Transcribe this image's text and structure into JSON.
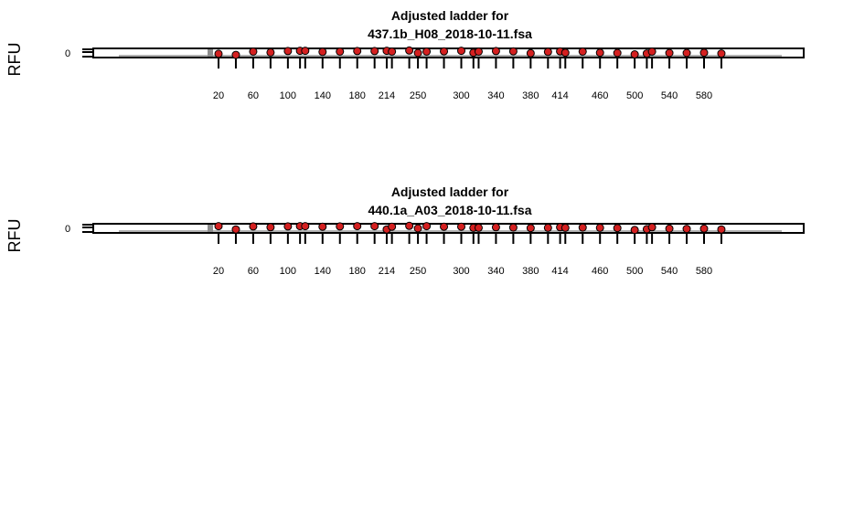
{
  "chart_data": [
    {
      "type": "scatter",
      "title_line1": "Adjusted ladder for",
      "title_line2": "437.1b_H08_2018-10-11.fsa",
      "ylabel": "RFU",
      "ytick_label": "0",
      "ladder_sizes": [
        20,
        40,
        60,
        80,
        100,
        114,
        120,
        140,
        160,
        180,
        200,
        214,
        220,
        240,
        250,
        260,
        280,
        300,
        314,
        320,
        340,
        360,
        380,
        400,
        414,
        420,
        440,
        460,
        480,
        500,
        514,
        520,
        540,
        560,
        580,
        600
      ],
      "size_labels": [
        "20",
        "60",
        "100",
        "140",
        "180",
        "214",
        "250",
        "300",
        "340",
        "380",
        "414",
        "460",
        "500",
        "540",
        "580"
      ],
      "point_values": [
        0.35,
        0.15,
        0.75,
        0.6,
        0.85,
        0.9,
        0.9,
        0.7,
        0.75,
        0.85,
        0.85,
        0.9,
        0.75,
        0.95,
        0.5,
        0.75,
        0.8,
        0.9,
        0.55,
        0.75,
        0.85,
        0.8,
        0.45,
        0.7,
        0.8,
        0.55,
        0.75,
        0.55,
        0.5,
        0.25,
        0.4,
        0.75,
        0.5,
        0.5,
        0.55,
        0.4
      ],
      "point_color": "#d42020"
    },
    {
      "type": "scatter",
      "title_line1": "Adjusted ladder for",
      "title_line2": "440.1a_A03_2018-10-11.fsa",
      "ylabel": "RFU",
      "ytick_label": "0",
      "ladder_sizes": [
        20,
        40,
        60,
        80,
        100,
        114,
        120,
        140,
        160,
        180,
        200,
        214,
        220,
        240,
        250,
        260,
        280,
        300,
        314,
        320,
        340,
        360,
        380,
        400,
        414,
        420,
        440,
        460,
        480,
        500,
        514,
        520,
        540,
        560,
        580,
        600
      ],
      "size_labels": [
        "20",
        "60",
        "100",
        "140",
        "180",
        "214",
        "250",
        "300",
        "340",
        "380",
        "414",
        "460",
        "500",
        "540",
        "580"
      ],
      "point_values": [
        0.9,
        0.3,
        0.85,
        0.7,
        0.85,
        0.9,
        0.9,
        0.8,
        0.85,
        0.9,
        0.9,
        0.3,
        0.8,
        0.95,
        0.5,
        0.9,
        0.8,
        0.8,
        0.6,
        0.6,
        0.7,
        0.65,
        0.55,
        0.6,
        0.7,
        0.6,
        0.65,
        0.6,
        0.55,
        0.2,
        0.35,
        0.7,
        0.45,
        0.4,
        0.45,
        0.3
      ],
      "point_color": "#d42020"
    }
  ]
}
